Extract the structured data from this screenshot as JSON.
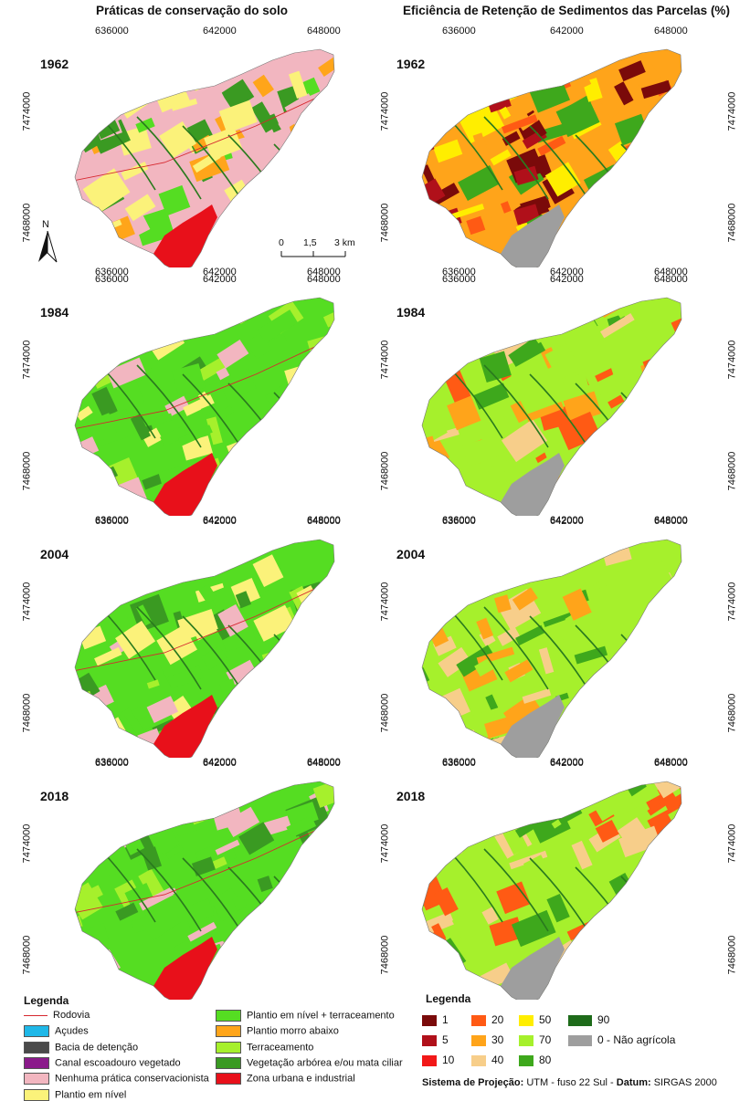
{
  "titles": {
    "left": "Práticas de conservação do solo",
    "right": "Eficiência de Retenção de Sedimentos das Parcelas (%)"
  },
  "years": [
    "1962",
    "1984",
    "2004",
    "2018"
  ],
  "axis": {
    "x_ticks": [
      "636000",
      "642000",
      "648000"
    ],
    "y_ticks": [
      "7474000",
      "7468000"
    ]
  },
  "north_label": "N",
  "scale": {
    "labels": [
      "0",
      "1,5",
      "3 km"
    ]
  },
  "legend_left": {
    "title": "Legenda",
    "items": [
      {
        "label": "Rodovia",
        "color": "#d6272e",
        "kind": "line"
      },
      {
        "label": "Açudes",
        "color": "#1fb8e8",
        "kind": "box"
      },
      {
        "label": "Bacia de detenção",
        "color": "#4a4a4a",
        "kind": "box"
      },
      {
        "label": "Canal escoadouro vegetado",
        "color": "#8b1a8b",
        "kind": "box"
      },
      {
        "label": "Nenhuma prática conservacionista",
        "color": "#f2b6c0",
        "kind": "box"
      },
      {
        "label": "Plantio em nível",
        "color": "#fbf27a",
        "kind": "box"
      },
      {
        "label": "Plantio em nível + terraceamento",
        "color": "#55dd22",
        "kind": "box"
      },
      {
        "label": "Plantio morro abaixo",
        "color": "#ffa51a",
        "kind": "box"
      },
      {
        "label": "Terraceamento",
        "color": "#a6f02c",
        "kind": "box"
      },
      {
        "label": "Vegetação arbórea e/ou mata ciliar",
        "color": "#3a9a22",
        "kind": "box"
      },
      {
        "label": "Zona urbana e industrial",
        "color": "#e8101a",
        "kind": "box"
      }
    ]
  },
  "legend_right": {
    "title": "Legenda",
    "items": [
      {
        "label": "1",
        "color": "#7a0a0a"
      },
      {
        "label": "5",
        "color": "#b0101a"
      },
      {
        "label": "10",
        "color": "#f21818"
      },
      {
        "label": "20",
        "color": "#ff5a14"
      },
      {
        "label": "30",
        "color": "#ffa41a"
      },
      {
        "label": "40",
        "color": "#f7ce8a"
      },
      {
        "label": "50",
        "color": "#ffee00"
      },
      {
        "label": "70",
        "color": "#a6f02c"
      },
      {
        "label": "80",
        "color": "#3ea81c"
      },
      {
        "label": "90",
        "color": "#1e6b1a"
      },
      {
        "label": "0 - Não agrícola",
        "color": "#9e9e9e"
      }
    ]
  },
  "projection": {
    "prefix": "Sistema de Projeção:",
    "system": "UTM - fuso 22 Sul",
    "datum_label": "Datum:",
    "datum": "SIRGAS 2000"
  },
  "map_palettes": {
    "left_1962": [
      "#f2b6c0",
      "#fbf27a",
      "#ffa51a",
      "#3a9a22",
      "#f2b6c0",
      "#fbf27a",
      "#55dd22"
    ],
    "left_1984": [
      "#55dd22",
      "#fbf27a",
      "#f2b6c0",
      "#a6f02c",
      "#3a9a22",
      "#55dd22"
    ],
    "left_2004": [
      "#55dd22",
      "#a6f02c",
      "#3a9a22",
      "#f2b6c0",
      "#fbf27a",
      "#55dd22"
    ],
    "left_2018": [
      "#55dd22",
      "#3a9a22",
      "#a6f02c",
      "#55dd22",
      "#f2b6c0"
    ],
    "right_1962": [
      "#ffa41a",
      "#b0101a",
      "#7a0a0a",
      "#ffee00",
      "#3ea81c",
      "#ff5a14",
      "#ffa41a"
    ],
    "right_1984": [
      "#a6f02c",
      "#ffa41a",
      "#ff5a14",
      "#f7ce8a",
      "#3ea81c",
      "#a6f02c"
    ],
    "right_2004": [
      "#a6f02c",
      "#3ea81c",
      "#f7ce8a",
      "#ffa41a",
      "#a6f02c"
    ],
    "right_2018": [
      "#a6f02c",
      "#3ea81c",
      "#a6f02c",
      "#f7ce8a",
      "#ff5a14"
    ]
  }
}
